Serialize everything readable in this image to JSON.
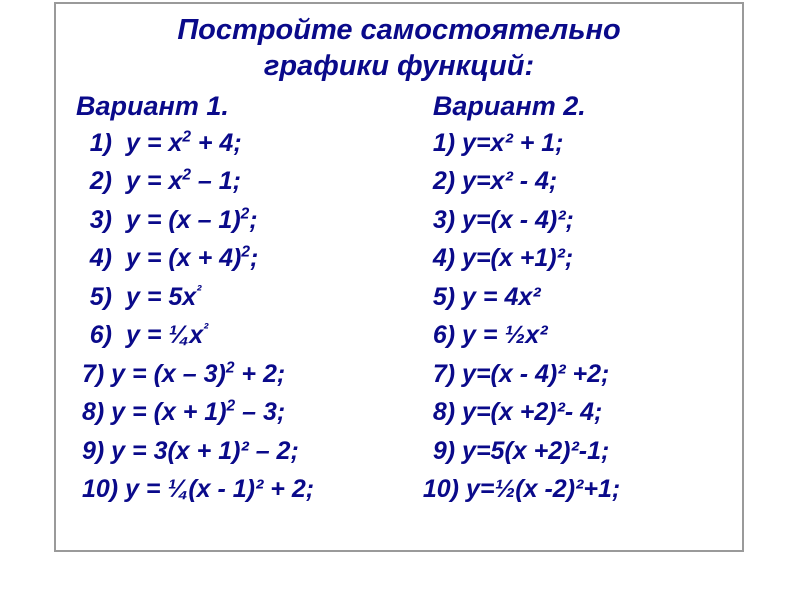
{
  "title_line1": "Постройте самостоятельно",
  "title_line2": "графики функций:",
  "colors": {
    "text": "#0a0a8a",
    "border": "#9a9a9a",
    "background": "#ffffff"
  },
  "variant1": {
    "heading": "Вариант 1.",
    "items": [
      {
        "n": "1)",
        "pre": "у = х",
        "sup": "2",
        "post": " + 4;"
      },
      {
        "n": "2)",
        "pre": "у = х",
        "sup": "2",
        "post": " – 1;"
      },
      {
        "n": "3)",
        "pre": "у = (х – 1)",
        "sup": "2",
        "post": ";"
      },
      {
        "n": "4)",
        "pre": "у = (х + 4)",
        "sup": "2",
        "post": ";"
      },
      {
        "n": "5)",
        "pre": "у = 5х",
        "sup": "²",
        "post": ""
      },
      {
        "n": "6)",
        "pre": "у = ¼х",
        "sup": "²",
        "post": ""
      }
    ],
    "items2": [
      {
        "txt_pre": "7) у = (х – 3)",
        "sup": "2",
        "txt_post": " + 2;"
      },
      {
        "txt_pre": "8) у = (х + 1)",
        "sup": "2",
        "txt_post": " – 3;"
      },
      {
        "txt_pre": "9) у = 3(х + 1)² – 2;",
        "sup": "",
        "txt_post": ""
      },
      {
        "txt_pre": "10) у = ¼(х - 1)² + 2;",
        "sup": "",
        "txt_post": ""
      }
    ]
  },
  "variant2": {
    "heading": "Вариант 2.",
    "items": [
      {
        "txt": "1) у=х² + 1;"
      },
      {
        "txt": "2) у=х² - 4;"
      },
      {
        "txt": "3) у=(х - 4)²;"
      },
      {
        "txt": "4) у=(х +1)²;"
      },
      {
        "txt": "5) у = 4х²"
      },
      {
        "txt": "6) у = ½х²"
      },
      {
        "txt": "7) у=(х - 4)² +2;"
      },
      {
        "txt": "8) у=(х +2)²- 4;"
      },
      {
        "txt": "9) у=5(х +2)²-1;"
      }
    ],
    "last": "10) у=½(х -2)²+1;"
  }
}
